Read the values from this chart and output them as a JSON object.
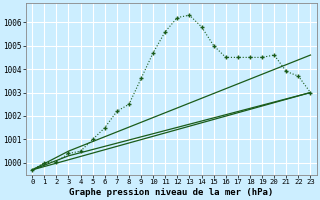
{
  "title": "Graphe pression niveau de la mer (hPa)",
  "background_color": "#cceeff",
  "grid_color": "#ffffff",
  "line_color": "#1a5c1a",
  "xlim_min": -0.5,
  "xlim_max": 23.5,
  "ylim_min": 999.5,
  "ylim_max": 1006.8,
  "yticks": [
    1000,
    1001,
    1002,
    1003,
    1004,
    1005,
    1006
  ],
  "xticks": [
    0,
    1,
    2,
    3,
    4,
    5,
    6,
    7,
    8,
    9,
    10,
    11,
    12,
    13,
    14,
    15,
    16,
    17,
    18,
    19,
    20,
    21,
    22,
    23
  ],
  "main_x": [
    0,
    1,
    2,
    3,
    4,
    5,
    6,
    7,
    8,
    9,
    10,
    11,
    12,
    13,
    14,
    15,
    16,
    17,
    18,
    19,
    20,
    21,
    22,
    23
  ],
  "main_y": [
    999.7,
    1000.0,
    1000.05,
    1000.4,
    1000.5,
    1001.0,
    1001.5,
    1002.2,
    1002.5,
    1003.6,
    1004.7,
    1005.6,
    1006.2,
    1006.3,
    1005.8,
    1005.0,
    1004.5,
    1004.5,
    1004.5,
    1004.5,
    1004.6,
    1003.9,
    1003.7,
    1003.0
  ],
  "line1_x": [
    0,
    23
  ],
  "line1_y": [
    999.7,
    1003.0
  ],
  "line2_x": [
    0,
    3,
    23
  ],
  "line2_y": [
    999.7,
    1000.3,
    1003.0
  ],
  "line3_x": [
    0,
    3,
    23
  ],
  "line3_y": [
    999.7,
    1000.5,
    1004.6
  ]
}
